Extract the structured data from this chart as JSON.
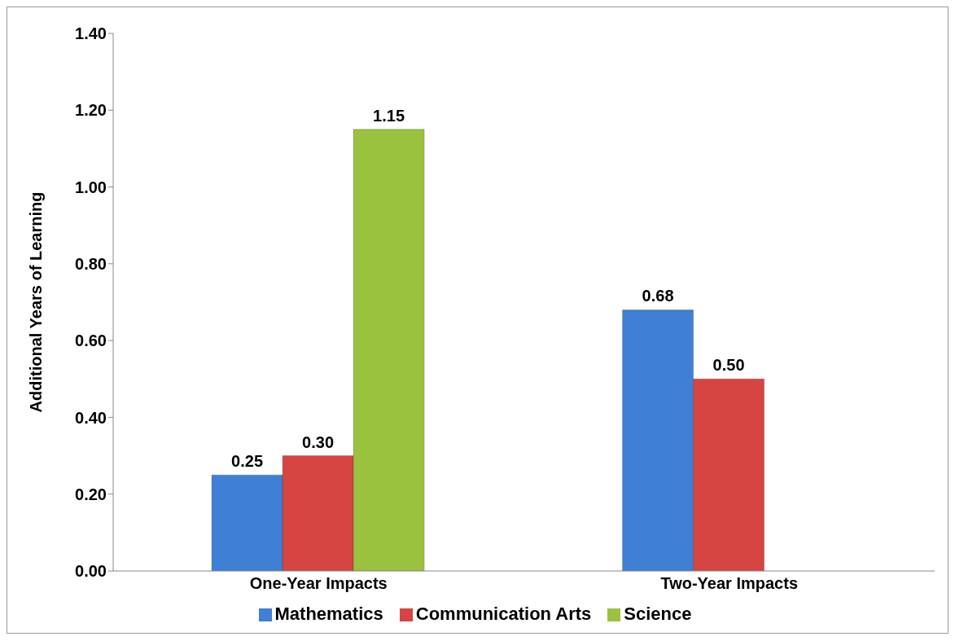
{
  "chart_data": {
    "type": "bar",
    "ylabel": "Additional Years of Learning",
    "categories": [
      "One-Year Impacts",
      "Two-Year Impacts"
    ],
    "series": [
      {
        "name": "Mathematics",
        "color": "#3f7fd6",
        "values": [
          0.25,
          0.68
        ],
        "value_labels": [
          "0.25",
          "0.68"
        ]
      },
      {
        "name": "Communication Arts",
        "color": "#d64541",
        "values": [
          0.3,
          0.5
        ],
        "value_labels": [
          "0.30",
          "0.50"
        ]
      },
      {
        "name": "Science",
        "color": "#9bc23f",
        "values": [
          1.15,
          null
        ],
        "value_labels": [
          "1.15",
          null
        ]
      }
    ],
    "ylim": [
      0,
      1.4
    ],
    "yticks": [
      {
        "value": 0,
        "label": "0.00"
      },
      {
        "value": 0.2,
        "label": "0.20"
      },
      {
        "value": 0.4,
        "label": "0.40"
      },
      {
        "value": 0.6,
        "label": "0.60"
      },
      {
        "value": 0.8,
        "label": "0.80"
      },
      {
        "value": 1.0,
        "label": "1.00"
      },
      {
        "value": 1.2,
        "label": "1.20"
      },
      {
        "value": 1.4,
        "label": "1.40"
      }
    ],
    "grid": false,
    "legend": "bottom"
  }
}
